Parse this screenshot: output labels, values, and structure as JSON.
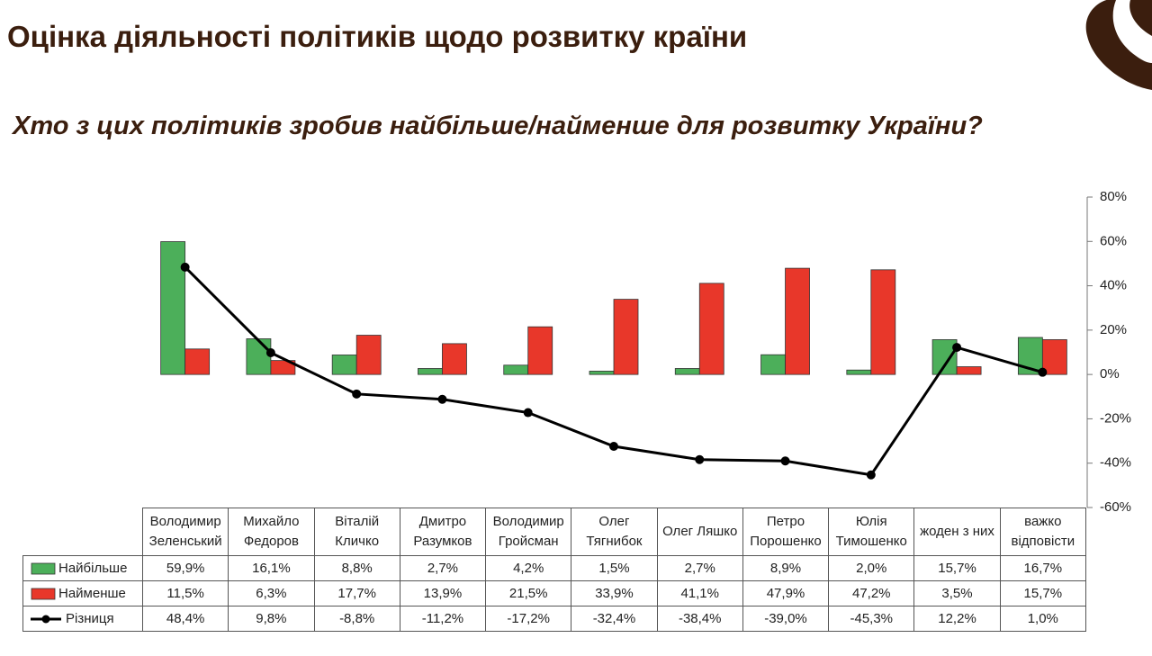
{
  "chart_data": {
    "type": "bar_line",
    "title": "Оцінка діяльності політиків щодо розвитку країни",
    "subtitle": "Хто з цих політиків зробив найбільше/найменше для розвитку України?",
    "categories": [
      "Володимир Зеленський",
      "Михайло Федоров",
      "Віталій Кличко",
      "Дмитро Разумков",
      "Володимир Гройсман",
      "Олег Тягнибок",
      "Олег Ляшко",
      "Петро Порошенко",
      "Юлія Тимошенко",
      "жоден з них",
      "важко відповісти"
    ],
    "series": [
      {
        "name": "Найбільше",
        "type": "bar",
        "color": "#4caf5a",
        "values": [
          59.9,
          16.1,
          8.8,
          2.7,
          4.2,
          1.5,
          2.7,
          8.9,
          2.0,
          15.7,
          16.7
        ],
        "value_labels": [
          "59,9%",
          "16,1%",
          "8,8%",
          "2,7%",
          "4,2%",
          "1,5%",
          "2,7%",
          "8,9%",
          "2,0%",
          "15,7%",
          "16,7%"
        ]
      },
      {
        "name": "Найменше",
        "type": "bar",
        "color": "#e8372a",
        "values": [
          11.5,
          6.3,
          17.7,
          13.9,
          21.5,
          33.9,
          41.1,
          47.9,
          47.2,
          3.5,
          15.7
        ],
        "value_labels": [
          "11,5%",
          "6,3%",
          "17,7%",
          "13,9%",
          "21,5%",
          "33,9%",
          "41,1%",
          "47,9%",
          "47,2%",
          "3,5%",
          "15,7%"
        ]
      },
      {
        "name": "Різниця",
        "type": "line",
        "color": "#000000",
        "values": [
          48.4,
          9.8,
          -8.8,
          -11.2,
          -17.2,
          -32.4,
          -38.4,
          -39.0,
          -45.3,
          12.2,
          1.0
        ],
        "value_labels": [
          "48,4%",
          "9,8%",
          "-8,8%",
          "-11,2%",
          "-17,2%",
          "-32,4%",
          "-38,4%",
          "-39,0%",
          "-45,3%",
          "12,2%",
          "1,0%"
        ]
      }
    ],
    "ylim": [
      -60,
      80
    ],
    "yticks": [
      {
        "value": -60,
        "label": "-60%"
      },
      {
        "value": -40,
        "label": "-40%"
      },
      {
        "value": -20,
        "label": "-20%"
      },
      {
        "value": 0,
        "label": "0%"
      },
      {
        "value": 20,
        "label": "20%"
      },
      {
        "value": 40,
        "label": "40%"
      },
      {
        "value": 60,
        "label": "60%"
      },
      {
        "value": 80,
        "label": "80%"
      }
    ],
    "y_axis_side": "right",
    "grid": false,
    "legend": "table"
  }
}
